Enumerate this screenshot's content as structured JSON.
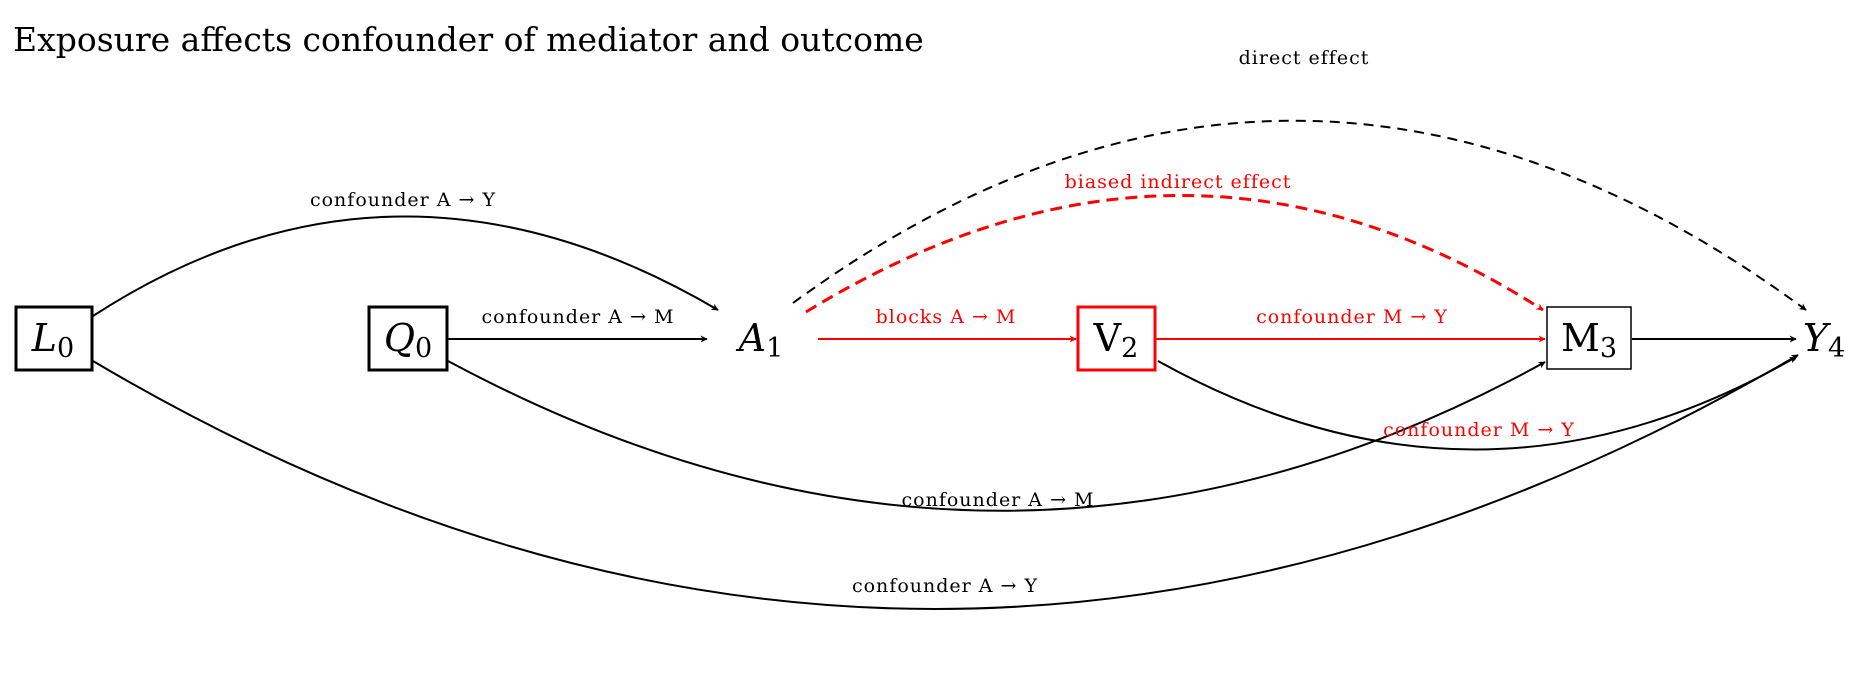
{
  "title": "Exposure affects confounder of mediator and outcome",
  "colors": {
    "default": "#000000",
    "highlight": "#ff0000"
  },
  "nodes": {
    "L0": {
      "main": "L",
      "sub": "0",
      "italic": true,
      "boxed": true,
      "color": "#000000"
    },
    "Q0": {
      "main": "Q",
      "sub": "0",
      "italic": true,
      "boxed": true,
      "color": "#000000"
    },
    "A1": {
      "main": "A",
      "sub": "1",
      "italic": true,
      "boxed": false,
      "color": "#000000"
    },
    "V2": {
      "main": "V",
      "sub": "2",
      "italic": false,
      "boxed": true,
      "color": "#ff0000"
    },
    "M3": {
      "main": "M",
      "sub": "3",
      "italic": false,
      "boxed": true,
      "color": "#000000"
    },
    "Y4": {
      "main": "Y",
      "sub": "4",
      "italic": true,
      "boxed": false,
      "color": "#000000"
    }
  },
  "edges": {
    "L0_A1": {
      "from": "L0",
      "to": "A1",
      "label": "confounder A → Y",
      "color": "#000000",
      "style": "solid"
    },
    "Q0_A1": {
      "from": "Q0",
      "to": "A1",
      "label": "confounder A → M",
      "color": "#000000",
      "style": "solid"
    },
    "A1_V2": {
      "from": "A1",
      "to": "V2",
      "label": "blocks A → M",
      "color": "#ff0000",
      "style": "solid"
    },
    "V2_M3": {
      "from": "V2",
      "to": "M3",
      "label": "confounder M → Y",
      "color": "#ff0000",
      "style": "solid"
    },
    "M3_Y4": {
      "from": "M3",
      "to": "Y4",
      "label": "",
      "color": "#000000",
      "style": "solid"
    },
    "A1_M3": {
      "from": "A1",
      "to": "M3",
      "label": "biased indirect effect",
      "color": "#ff0000",
      "style": "dashed"
    },
    "A1_Y4": {
      "from": "A1",
      "to": "Y4",
      "label": "direct effect",
      "color": "#000000",
      "style": "dashed"
    },
    "Q0_M3": {
      "from": "Q0",
      "to": "M3",
      "label": "confounder A → M",
      "color": "#000000",
      "style": "solid"
    },
    "V2_Y4": {
      "from": "V2",
      "to": "Y4",
      "label": "confounder M → Y",
      "color": "#ff0000",
      "style": "solid"
    },
    "L0_Y4": {
      "from": "L0",
      "to": "Y4",
      "label": "confounder A → Y",
      "color": "#000000",
      "style": "solid"
    }
  }
}
